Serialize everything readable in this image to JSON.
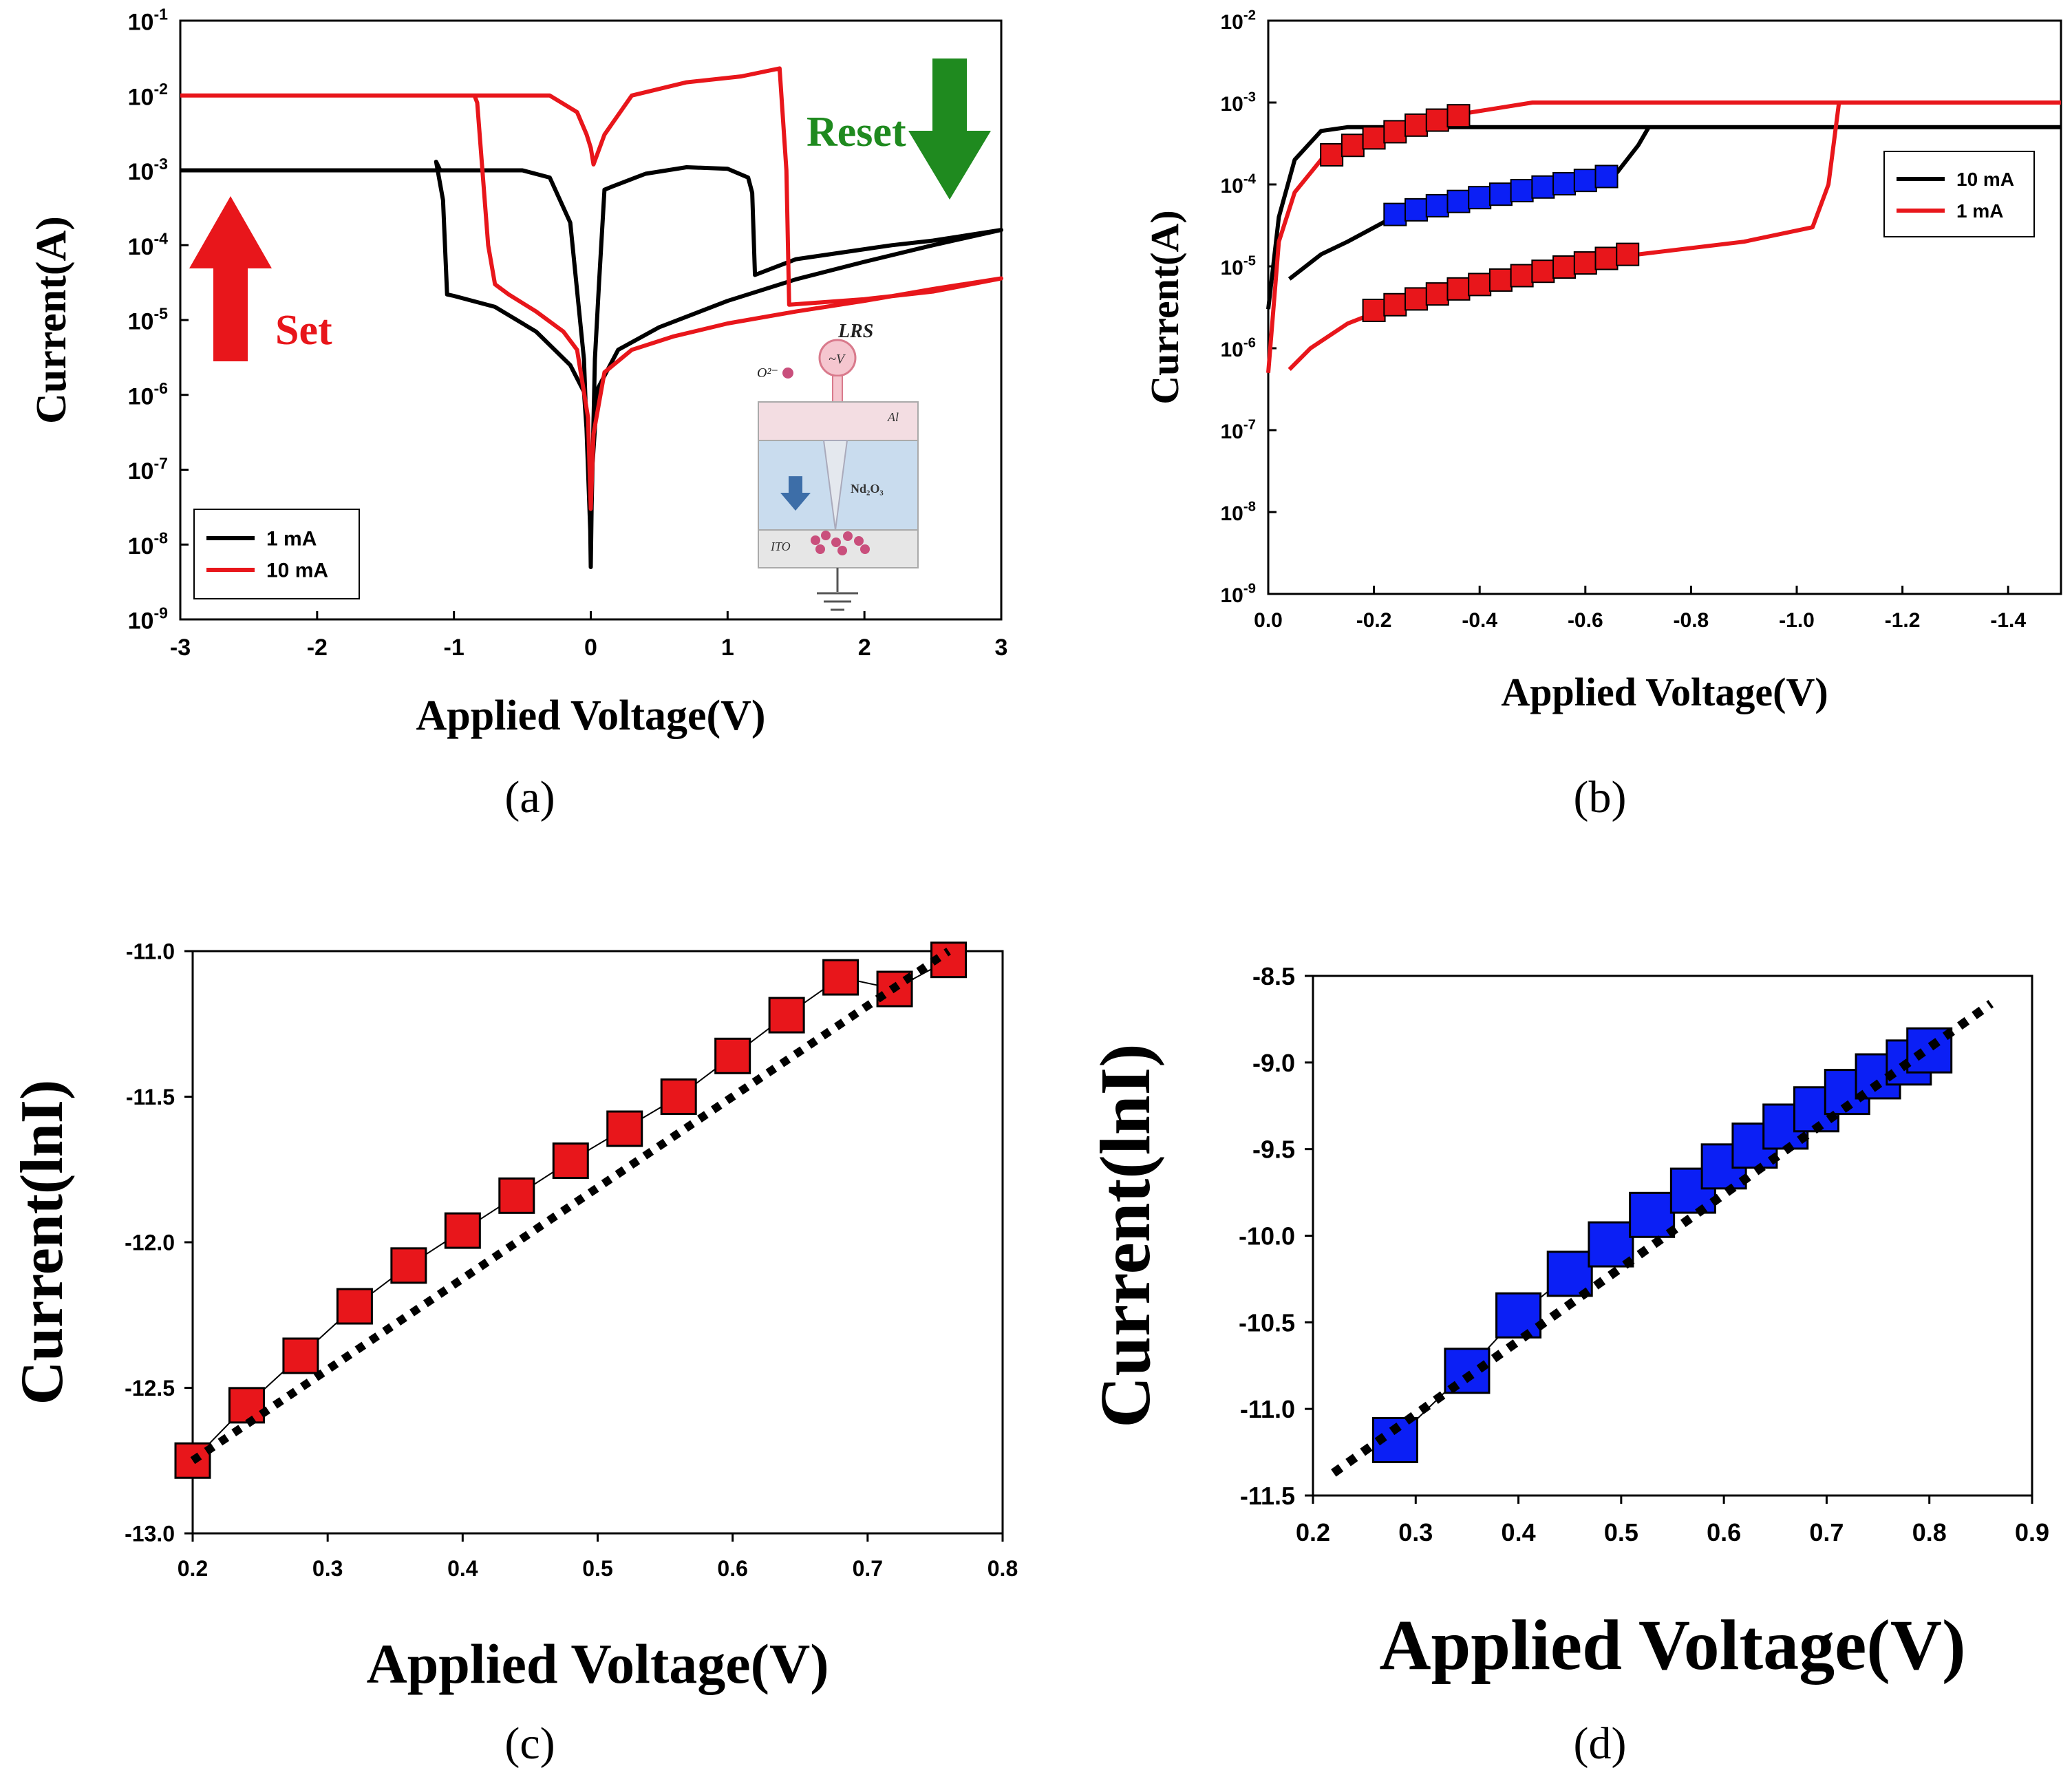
{
  "colors": {
    "red": "#e8161b",
    "black": "#000000",
    "blue": "#0b1ff5",
    "green": "#1f8a1f",
    "grey": "#888888"
  },
  "panels": {
    "a": "(a)",
    "b": "(b)",
    "c": "(c)",
    "d": "(d)"
  },
  "chart_data": [
    {
      "id": "a",
      "type": "line",
      "yscale": "log",
      "xlabel": "Applied Voltage(V)",
      "ylabel": "Current(A)",
      "xlim": [
        -3,
        3
      ],
      "ylim_exp": [
        -9,
        -1
      ],
      "xticks": [
        -3,
        -2,
        -1,
        0,
        1,
        2,
        3
      ],
      "yticks_exp": [
        -9,
        -8,
        -7,
        -6,
        -5,
        -4,
        -3,
        -2,
        -1
      ],
      "legend": [
        {
          "label": "1 mA",
          "color": "#000000"
        },
        {
          "label": "10 mA",
          "color": "#e8161b"
        }
      ],
      "annotations": {
        "set": "Set",
        "reset": "Reset"
      },
      "inset": {
        "title": "LRS",
        "source_label": "~V",
        "ion_label": "O²⁻",
        "top_layer": "Al",
        "middle_layer": "Nd₂O₃",
        "bottom_layer": "ITO"
      },
      "series": [
        {
          "name": "1 mA",
          "color": "#000000",
          "points": [
            [
              -3,
              0.001
            ],
            [
              -1.1,
              0.001
            ],
            [
              -1.13,
              0.0013
            ],
            [
              -1.08,
              0.0004
            ],
            [
              -1.05,
              2.2e-05
            ],
            [
              -1.0,
              2.1e-05
            ],
            [
              -0.7,
              1.5e-05
            ],
            [
              -0.4,
              7e-06
            ],
            [
              -0.15,
              2.5e-06
            ],
            [
              -0.05,
              1.1e-06
            ],
            [
              -0.01,
              1e-07
            ],
            [
              0,
              5e-09
            ],
            [
              0.01,
              1e-07
            ],
            [
              0.05,
              1.2e-06
            ],
            [
              0.2,
              4e-06
            ],
            [
              0.5,
              8e-06
            ],
            [
              1.0,
              1.8e-05
            ],
            [
              1.5,
              3.5e-05
            ],
            [
              2.0,
              6e-05
            ],
            [
              2.5,
              0.0001
            ],
            [
              3,
              0.00016
            ],
            [
              2.5,
              0.000115
            ],
            [
              2.2,
              0.0001
            ],
            [
              1.5,
              6.5e-05
            ],
            [
              1.2,
              4e-05
            ],
            [
              1.18,
              0.0005
            ],
            [
              1.15,
              0.0008
            ],
            [
              1.0,
              0.00105
            ],
            [
              0.7,
              0.0011
            ],
            [
              0.4,
              0.0009
            ],
            [
              0.15,
              0.0006
            ],
            [
              0.1,
              0.00055
            ],
            [
              0.06,
              3e-05
            ],
            [
              0.03,
              3e-06
            ],
            [
              0,
              1e-08
            ],
            [
              -0.05,
              3e-06
            ],
            [
              -0.15,
              0.0002
            ],
            [
              -0.3,
              0.0008
            ],
            [
              -0.5,
              0.001
            ],
            [
              -3,
              0.001
            ]
          ]
        },
        {
          "name": "10 mA",
          "color": "#e8161b",
          "points": [
            [
              -3,
              0.01
            ],
            [
              -0.85,
              0.01
            ],
            [
              -0.83,
              0.008
            ],
            [
              -0.75,
              0.0001
            ],
            [
              -0.7,
              3e-05
            ],
            [
              -0.6,
              2.2e-05
            ],
            [
              -0.4,
              1.3e-05
            ],
            [
              -0.2,
              7e-06
            ],
            [
              -0.1,
              4e-06
            ],
            [
              -0.02,
              5e-07
            ],
            [
              0,
              3e-08
            ],
            [
              0.02,
              3e-07
            ],
            [
              0.1,
              2e-06
            ],
            [
              0.3,
              4e-06
            ],
            [
              0.6,
              6e-06
            ],
            [
              1.0,
              9e-06
            ],
            [
              1.5,
              1.3e-05
            ],
            [
              2.0,
              1.8e-05
            ],
            [
              2.5,
              2.6e-05
            ],
            [
              3,
              3.6e-05
            ],
            [
              2.5,
              2.4e-05
            ],
            [
              2.0,
              1.9e-05
            ],
            [
              1.45,
              1.6e-05
            ],
            [
              1.43,
              0.001
            ],
            [
              1.38,
              0.023
            ],
            [
              1.1,
              0.018
            ],
            [
              0.7,
              0.015
            ],
            [
              0.3,
              0.01
            ],
            [
              0.1,
              0.003
            ],
            [
              0.02,
              0.0012
            ],
            [
              0,
              0.002
            ],
            [
              -0.03,
              0.003
            ],
            [
              -0.1,
              0.006
            ],
            [
              -0.3,
              0.01
            ],
            [
              -3,
              0.01
            ]
          ]
        }
      ]
    },
    {
      "id": "b",
      "type": "line",
      "yscale": "log",
      "xlabel": "Applied Voltage(V)",
      "ylabel": "Current(A)",
      "xlim": [
        0,
        -1.5
      ],
      "ylim_exp": [
        -9,
        -2
      ],
      "xticks": [
        0.0,
        -0.2,
        -0.4,
        -0.6,
        -0.8,
        -1.0,
        -1.2,
        -1.4
      ],
      "xtick_labels": [
        "0.0",
        "-0.2",
        "-0.4",
        "-0.6",
        "-0.8",
        "-1.0",
        "-1.2",
        "-1.4"
      ],
      "yticks_exp": [
        -9,
        -8,
        -7,
        -6,
        -5,
        -4,
        -3,
        -2
      ],
      "legend": [
        {
          "label": "10 mA",
          "color": "#000000"
        },
        {
          "label": "1   mA",
          "color": "#e8161b"
        }
      ],
      "series": [
        {
          "name": "10 mA",
          "color": "#000000",
          "points": [
            [
              0,
              3e-06
            ],
            [
              -0.02,
              4e-05
            ],
            [
              -0.05,
              0.0002
            ],
            [
              -0.1,
              0.00045
            ],
            [
              -0.15,
              0.0005
            ],
            [
              -1.5,
              0.0005
            ]
          ]
        },
        {
          "name": "10 mA return",
          "color": "#000000",
          "points": [
            [
              -0.04,
              7e-06
            ],
            [
              -0.1,
              1.4e-05
            ],
            [
              -0.15,
              2e-05
            ],
            [
              -0.22,
              3.5e-05
            ],
            [
              -0.3,
              5e-05
            ],
            [
              -0.45,
              8e-05
            ],
            [
              -0.6,
              0.00011
            ],
            [
              -0.66,
              0.00014
            ],
            [
              -0.7,
              0.0003
            ],
            [
              -0.72,
              0.0005
            ]
          ]
        },
        {
          "name": "1 mA",
          "color": "#e8161b",
          "points": [
            [
              0,
              5e-07
            ],
            [
              -0.02,
              2e-05
            ],
            [
              -0.05,
              8e-05
            ],
            [
              -0.1,
              0.0002
            ],
            [
              -0.2,
              0.0004
            ],
            [
              -0.35,
              0.0007
            ],
            [
              -0.5,
              0.001
            ],
            [
              -1.5,
              0.001
            ]
          ]
        },
        {
          "name": "1 mA return",
          "color": "#e8161b",
          "points": [
            [
              -0.04,
              5.5e-07
            ],
            [
              -0.08,
              1e-06
            ],
            [
              -0.15,
              2e-06
            ],
            [
              -0.22,
              3e-06
            ],
            [
              -0.35,
              5e-06
            ],
            [
              -0.55,
              8e-06
            ],
            [
              -0.7,
              1.4e-05
            ],
            [
              -0.9,
              2e-05
            ],
            [
              -1.03,
              3e-05
            ],
            [
              -1.06,
              0.0001
            ],
            [
              -1.08,
              0.001
            ]
          ]
        }
      ],
      "markers": [
        {
          "name": "red upper",
          "color": "#e8161b",
          "x": [
            -0.12,
            -0.16,
            -0.2,
            -0.24,
            -0.28,
            -0.32,
            -0.36
          ],
          "y": [
            0.00023,
            0.0003,
            0.00037,
            0.00044,
            0.00053,
            0.00061,
            0.00069
          ]
        },
        {
          "name": "blue middle",
          "color": "#0b1ff5",
          "x": [
            -0.24,
            -0.28,
            -0.32,
            -0.36,
            -0.4,
            -0.44,
            -0.48,
            -0.52,
            -0.56,
            -0.6,
            -0.64
          ],
          "y": [
            4.3e-05,
            4.9e-05,
            5.5e-05,
            6.2e-05,
            6.9e-05,
            7.6e-05,
            8.4e-05,
            9.3e-05,
            0.000102,
            0.000112,
            0.000125
          ]
        },
        {
          "name": "red lower",
          "color": "#e8161b",
          "x": [
            -0.2,
            -0.24,
            -0.28,
            -0.32,
            -0.36,
            -0.4,
            -0.44,
            -0.48,
            -0.52,
            -0.56,
            -0.6,
            -0.64,
            -0.68
          ],
          "y": [
            2.9e-06,
            3.4e-06,
            4e-06,
            4.6e-06,
            5.3e-06,
            6e-06,
            6.8e-06,
            7.7e-06,
            8.7e-06,
            9.8e-06,
            1.1e-05,
            1.25e-05,
            1.4e-05
          ]
        }
      ]
    },
    {
      "id": "c",
      "type": "scatter",
      "xlabel": "Applied Voltage(V)",
      "ylabel": "Current(lnI)",
      "xlim": [
        0.2,
        0.8
      ],
      "ylim": [
        -13.0,
        -11.0
      ],
      "xticks": [
        0.2,
        0.3,
        0.4,
        0.5,
        0.6,
        0.7,
        0.8
      ],
      "xtick_labels": [
        "0.2",
        "0.3",
        "0.4",
        "0.5",
        "0.6",
        "0.7",
        "0.8"
      ],
      "yticks": [
        -13.0,
        -12.5,
        -12.0,
        -11.5,
        -11.0
      ],
      "ytick_labels": [
        "-13.0",
        "-12.5",
        "-12.0",
        "-11.5",
        "-11.0"
      ],
      "series": [
        {
          "name": "data",
          "color": "#e8161b",
          "x": [
            0.2,
            0.24,
            0.28,
            0.32,
            0.36,
            0.4,
            0.44,
            0.48,
            0.52,
            0.56,
            0.6,
            0.64,
            0.68,
            0.72,
            0.76
          ],
          "y": [
            -12.75,
            -12.56,
            -12.39,
            -12.22,
            -12.08,
            -11.96,
            -11.84,
            -11.72,
            -11.61,
            -11.5,
            -11.36,
            -11.22,
            -11.09,
            -11.13,
            -11.03
          ]
        },
        {
          "name": "fit",
          "style": "dotted",
          "x": [
            0.2,
            0.76
          ],
          "y": [
            -12.75,
            -11.0
          ]
        }
      ]
    },
    {
      "id": "d",
      "type": "scatter",
      "xlabel": "Applied Voltage(V)",
      "ylabel": "Current(lnI)",
      "xlim": [
        0.2,
        0.9
      ],
      "ylim": [
        -11.5,
        -8.5
      ],
      "xticks": [
        0.2,
        0.3,
        0.4,
        0.5,
        0.6,
        0.7,
        0.8,
        0.9
      ],
      "xtick_labels": [
        "0.2",
        "0.3",
        "0.4",
        "0.5",
        "0.6",
        "0.7",
        "0.8",
        "0.9"
      ],
      "yticks": [
        -11.5,
        -11.0,
        -10.5,
        -10.0,
        -9.5,
        -9.0,
        -8.5
      ],
      "ytick_labels": [
        "-11.5",
        "-11.0",
        "-10.5",
        "-10.0",
        "-9.5",
        "-9.0",
        "-8.5"
      ],
      "series": [
        {
          "name": "data",
          "color": "#0b1ff5",
          "x": [
            0.28,
            0.35,
            0.4,
            0.45,
            0.49,
            0.53,
            0.57,
            0.6,
            0.63,
            0.66,
            0.69,
            0.72,
            0.75,
            0.78,
            0.8
          ],
          "y": [
            -11.18,
            -10.78,
            -10.46,
            -10.22,
            -10.05,
            -9.88,
            -9.74,
            -9.6,
            -9.48,
            -9.37,
            -9.27,
            -9.17,
            -9.08,
            -9.0,
            -8.93
          ]
        },
        {
          "name": "fit",
          "style": "dotted",
          "x": [
            0.22,
            0.86
          ],
          "y": [
            -11.37,
            -8.66
          ]
        }
      ]
    }
  ]
}
